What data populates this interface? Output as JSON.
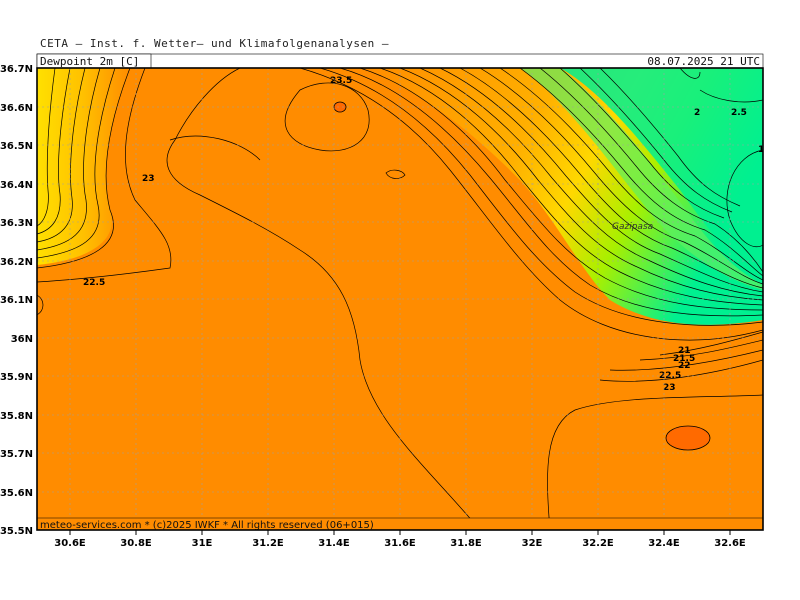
{
  "header": {
    "institute": "CETA – Inst. f. Wetter– und Klimafolgenanalysen –",
    "parameter": "Dewpoint 2m [C]",
    "valid_time": "08.07.2025 21 UTC"
  },
  "map": {
    "x_ticks": [
      "30.6E",
      "30.8E",
      "31E",
      "31.2E",
      "31.4E",
      "31.6E",
      "31.8E",
      "32E",
      "32.2E",
      "32.4E",
      "32.6E"
    ],
    "y_ticks": [
      "36.7N",
      "36.6N",
      "36.5N",
      "36.4N",
      "36.3N",
      "36.2N",
      "36.1N",
      "36N",
      "35.9N",
      "35.8N",
      "35.7N",
      "35.6N",
      "35.5N"
    ],
    "contour_labels": [
      "23.5",
      "23",
      "22.5",
      "2",
      "2.5",
      "1",
      "21",
      "21.5",
      "22",
      "22.5",
      "23"
    ],
    "place_label": "Gazipasa",
    "credit": "meteo-services.com * (c)2025 IWKF * All rights reserved (06+015)",
    "colors": {
      "orange": "#ff8c00",
      "dark_orange": "#ff6a00",
      "yellow": "#ffd000",
      "yellow_green": "#b4f000",
      "green": "#00f080",
      "contour": "#000000",
      "grid": "#a0a0a0"
    }
  }
}
